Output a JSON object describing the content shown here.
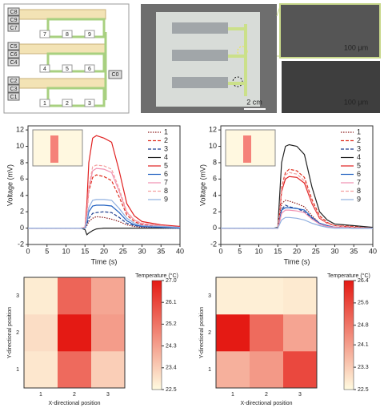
{
  "figure": {
    "diagram_labels": {
      "caps": [
        "C8",
        "C9",
        "C7",
        "C5",
        "C6",
        "C4",
        "C2",
        "C3",
        "C1"
      ],
      "nodes": [
        "7",
        "8",
        "9",
        "4",
        "5",
        "6",
        "1",
        "2",
        "3"
      ],
      "output": "C0"
    },
    "photo_labels": [
      "2 cm",
      "100 μm",
      "100 μm"
    ]
  },
  "chart_data": [
    {
      "type": "line",
      "xlabel": "Time (s)",
      "ylabel": "Voltage (mV)",
      "x": [
        0,
        5,
        10,
        14,
        15,
        15.5,
        16,
        17,
        18,
        20,
        22,
        24,
        26,
        28,
        30,
        35,
        40
      ],
      "xlim": [
        0,
        40
      ],
      "xticks": [
        0,
        5,
        10,
        15,
        20,
        25,
        30,
        35,
        40
      ],
      "ylim": [
        -2,
        12.5
      ],
      "yticks": [
        -2,
        0,
        2,
        4,
        6,
        8,
        10,
        12
      ],
      "series": [
        {
          "name": "1",
          "color": "#8b1a1a",
          "style": "dotted",
          "values": [
            0,
            0,
            0,
            0,
            0,
            0.3,
            0.8,
            1.2,
            1.4,
            1.3,
            1.1,
            0.8,
            0.4,
            0.2,
            0.1,
            0,
            0
          ]
        },
        {
          "name": "2",
          "color": "#e03020",
          "style": "dashed",
          "values": [
            0,
            0,
            0,
            0,
            0.1,
            1.8,
            4.5,
            6.2,
            6.5,
            6.3,
            5.8,
            3.8,
            1.6,
            0.8,
            0.4,
            0.2,
            0.1
          ]
        },
        {
          "name": "3",
          "color": "#1f3f8f",
          "style": "dashed",
          "values": [
            0,
            0,
            0,
            0,
            0,
            0.5,
            1.2,
            1.8,
            1.9,
            2,
            1.9,
            1.3,
            0.6,
            0.3,
            0.2,
            0.1,
            0
          ]
        },
        {
          "name": "4",
          "color": "#222222",
          "style": "solid",
          "values": [
            0,
            0,
            0,
            0,
            -0.2,
            -0.8,
            -0.6,
            -0.3,
            -0.1,
            0,
            0,
            0,
            0,
            0,
            0,
            0,
            0
          ]
        },
        {
          "name": "5",
          "color": "#e02020",
          "style": "solid",
          "values": [
            0,
            0,
            0,
            0,
            0.1,
            3,
            8,
            11,
            11.3,
            11,
            10.5,
            7,
            3,
            1.5,
            0.8,
            0.4,
            0.2
          ]
        },
        {
          "name": "6",
          "color": "#2060c0",
          "style": "solid",
          "values": [
            0,
            0,
            0,
            0,
            0,
            0.8,
            2,
            2.7,
            2.8,
            2.8,
            2.7,
            1.9,
            0.9,
            0.4,
            0.2,
            0.1,
            0
          ]
        },
        {
          "name": "7",
          "color": "#f090b0",
          "style": "solid",
          "values": [
            0,
            0,
            0,
            0,
            0.1,
            2,
            4.8,
            7,
            7.3,
            7.2,
            6.8,
            4.5,
            1.9,
            1,
            0.5,
            0.3,
            0.1
          ]
        },
        {
          "name": "8",
          "color": "#f4a0a0",
          "style": "dashed",
          "values": [
            0,
            0,
            0,
            0,
            0.1,
            2,
            5,
            7.5,
            7.7,
            7.6,
            7.2,
            4.8,
            2,
            1,
            0.6,
            0.3,
            0.1
          ]
        },
        {
          "name": "9",
          "color": "#90b0e0",
          "style": "solid",
          "values": [
            0,
            0,
            0,
            0,
            0,
            1,
            2.5,
            3.4,
            3.5,
            3.5,
            3.4,
            2.4,
            1.2,
            0.6,
            0.3,
            0.2,
            0.1
          ]
        }
      ]
    },
    {
      "type": "line",
      "xlabel": "Time (s)",
      "ylabel": "Voltage (mV)",
      "x": [
        0,
        5,
        10,
        14,
        15,
        15.5,
        16,
        17,
        18,
        20,
        22,
        24,
        26,
        28,
        30,
        35,
        40
      ],
      "xlim": [
        0,
        40
      ],
      "xticks": [
        0,
        5,
        10,
        15,
        20,
        25,
        30,
        35,
        40
      ],
      "ylim": [
        -2,
        12.5
      ],
      "yticks": [
        -2,
        0,
        2,
        4,
        6,
        8,
        10,
        12
      ],
      "series": [
        {
          "name": "1",
          "color": "#8b1a1a",
          "style": "dotted",
          "values": [
            0,
            0,
            0,
            0,
            0,
            1.5,
            3,
            3.4,
            3.3,
            3,
            2.6,
            1.5,
            0.6,
            0.3,
            0.1,
            0,
            0
          ]
        },
        {
          "name": "2",
          "color": "#e03020",
          "style": "dashed",
          "values": [
            0,
            0,
            0,
            0,
            0,
            2,
            5,
            6.8,
            7.2,
            7,
            6.2,
            3.5,
            1.5,
            0.7,
            0.3,
            0.2,
            0
          ]
        },
        {
          "name": "3",
          "color": "#1f3f8f",
          "style": "dashed",
          "values": [
            0,
            0,
            0,
            0,
            0,
            1,
            2.3,
            2.8,
            2.6,
            2.4,
            2,
            1.2,
            0.5,
            0.2,
            0.1,
            0,
            0
          ]
        },
        {
          "name": "4",
          "color": "#222222",
          "style": "solid",
          "values": [
            0,
            0,
            0,
            0,
            0.1,
            4,
            8,
            10,
            10.2,
            10,
            9,
            5,
            2,
            1,
            0.5,
            0.3,
            0.1
          ]
        },
        {
          "name": "5",
          "color": "#e02020",
          "style": "solid",
          "values": [
            0,
            0,
            0,
            0,
            0,
            1.8,
            4.5,
            6,
            6.3,
            6.2,
            5.5,
            3,
            1.2,
            0.6,
            0.3,
            0.1,
            0
          ]
        },
        {
          "name": "6",
          "color": "#2060c0",
          "style": "solid",
          "values": [
            0,
            0,
            0,
            0,
            0,
            1,
            2.2,
            2.5,
            2.5,
            2.4,
            2.2,
            1.3,
            0.6,
            0.3,
            0.1,
            0,
            0
          ]
        },
        {
          "name": "7",
          "color": "#f090b0",
          "style": "solid",
          "values": [
            0,
            0,
            0,
            0,
            0,
            0.8,
            1.8,
            2.2,
            2.2,
            2.1,
            1.9,
            1.1,
            0.5,
            0.2,
            0.1,
            0,
            0
          ]
        },
        {
          "name": "8",
          "color": "#f4a0a0",
          "style": "dashed",
          "values": [
            0,
            0,
            0,
            0,
            0,
            2,
            4.8,
            6.5,
            6.8,
            6.6,
            5.8,
            3.2,
            1.3,
            0.6,
            0.3,
            0.1,
            0
          ]
        },
        {
          "name": "9",
          "color": "#90b0e0",
          "style": "solid",
          "values": [
            0,
            0,
            0,
            0,
            0,
            0.5,
            1,
            1.3,
            1.3,
            1.2,
            1,
            0.6,
            0.3,
            0.1,
            0,
            0,
            0
          ]
        }
      ]
    },
    {
      "type": "heatmap",
      "xlabel": "X-directional position",
      "ylabel": "Y-directional position",
      "colorbar_title": "Temperature (°C)",
      "categories": [
        "1",
        "2",
        "3"
      ],
      "ycategories": [
        "1",
        "2",
        "3"
      ],
      "values": [
        [
          22.9,
          25.4,
          23.4
        ],
        [
          23.1,
          27.0,
          24.4
        ],
        [
          22.8,
          25.5,
          24.2
        ]
      ],
      "clim": [
        22.5,
        27.0
      ],
      "cticks": [
        22.5,
        23.4,
        24.3,
        25.2,
        26.1,
        {
          "value": 27.0,
          "label": "27.0"
        }
      ],
      "colors": [
        "#fffbe0",
        "#e41a14"
      ]
    },
    {
      "type": "heatmap",
      "xlabel": "X-directional position",
      "ylabel": "Y-directional position",
      "colorbar_title": "Temperature (°C)",
      "categories": [
        "1",
        "2",
        "3"
      ],
      "ycategories": [
        "1",
        "2",
        "3"
      ],
      "values": [
        [
          23.8,
          24.2,
          25.6
        ],
        [
          26.4,
          25.0,
          24.0
        ],
        [
          22.7,
          22.7,
          22.8
        ]
      ],
      "clim": [
        22.5,
        26.4
      ],
      "cticks": [
        22.5,
        23.3,
        24.1,
        24.8,
        25.6,
        26.4
      ],
      "colors": [
        "#fffbe0",
        "#e41a14"
      ]
    }
  ]
}
